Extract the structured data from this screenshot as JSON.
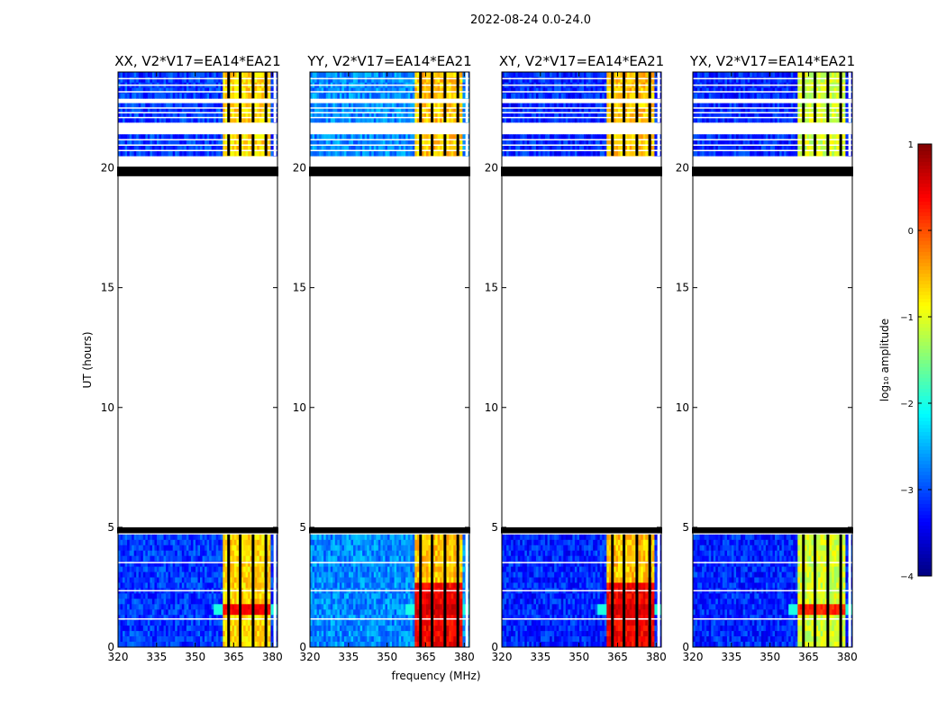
{
  "figure": {
    "suptitle": "2022-08-24 0.0-24.0",
    "xlabel": "frequency (MHz)",
    "ylabel": "UT (hours)"
  },
  "chart_data": {
    "type": "heatmap",
    "xlim": [
      320,
      382
    ],
    "ylim": [
      0,
      24
    ],
    "x_ticks": [
      320,
      335,
      350,
      365,
      380
    ],
    "y_ticks": [
      0,
      5,
      10,
      15,
      20
    ],
    "panels": [
      {
        "title": "XX, V2*V17=EA14*EA21",
        "baseline_level": -3.1,
        "band_level": -0.7,
        "hot_level": 0.2,
        "strong_rfi": false
      },
      {
        "title": "YY, V2*V17=EA14*EA21",
        "baseline_level": -2.7,
        "band_level": -0.6,
        "hot_level": 0.4,
        "strong_rfi": true
      },
      {
        "title": "XY, V2*V17=EA14*EA21",
        "baseline_level": -3.2,
        "band_level": -0.6,
        "hot_level": 0.4,
        "strong_rfi": true
      },
      {
        "title": "YX, V2*V17=EA14*EA21",
        "baseline_level": -3.2,
        "band_level": -1.1,
        "hot_level": 0.0,
        "strong_rfi": false
      }
    ],
    "data_time_ranges": [
      [
        0.0,
        4.7
      ],
      [
        20.5,
        21.4
      ],
      [
        21.9,
        22.7
      ],
      [
        22.9,
        24.0
      ]
    ],
    "flagged_time_bands": [
      [
        19.65,
        20.05
      ],
      [
        4.75,
        5.0
      ]
    ],
    "flagged_freq_columns": [
      363.0,
      367.5,
      372.5,
      377.5,
      381.0
    ],
    "band_freq_range": [
      361.0,
      379.5
    ],
    "colorbar": {
      "label": "log₁₀ amplitude",
      "range": [
        -4,
        1
      ],
      "ticks": [
        1,
        0,
        -1,
        -2,
        -3,
        -4
      ],
      "tick_labels": [
        "1",
        "0",
        "−1",
        "−2",
        "−3",
        "−4"
      ],
      "colormap": "jet"
    }
  }
}
